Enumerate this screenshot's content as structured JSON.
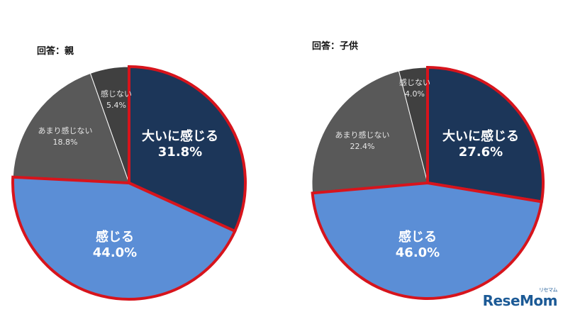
{
  "chart_data": [
    {
      "type": "pie",
      "title": "回答：親",
      "slices": [
        {
          "label": "大いに感じる",
          "value": 31.8,
          "value_text": "31.8%",
          "color": "#1c3659",
          "text_color": "#ffffff",
          "emphasis": true
        },
        {
          "label": "感じる",
          "value": 44.0,
          "value_text": "44.0%",
          "color": "#5b8ed6",
          "text_color": "#ffffff",
          "emphasis": true
        },
        {
          "label": "あまり感じない",
          "value": 18.8,
          "value_text": "18.8%",
          "color": "#595959",
          "text_color": "#e6e6e6",
          "emphasis": false
        },
        {
          "label": "感じない",
          "value": 5.4,
          "value_text": "5.4%",
          "color": "#404040",
          "text_color": "#e6e6e6",
          "emphasis": false
        }
      ],
      "highlight_border_color": "#d7141c"
    },
    {
      "type": "pie",
      "title": "回答：子供",
      "slices": [
        {
          "label": "大いに感じる",
          "value": 27.6,
          "value_text": "27.6%",
          "color": "#1c3659",
          "text_color": "#ffffff",
          "emphasis": true
        },
        {
          "label": "感じる",
          "value": 46.0,
          "value_text": "46.0%",
          "color": "#5b8ed6",
          "text_color": "#ffffff",
          "emphasis": true
        },
        {
          "label": "あまり感じない",
          "value": 22.4,
          "value_text": "22.4%",
          "color": "#595959",
          "text_color": "#e6e6e6",
          "emphasis": false
        },
        {
          "label": "感じない",
          "value": 4.0,
          "value_text": "4.0%",
          "color": "#404040",
          "text_color": "#e6e6e6",
          "emphasis": false
        }
      ],
      "highlight_border_color": "#d7141c"
    }
  ],
  "watermark": {
    "text": "ReseMom",
    "sub": "リセマム",
    "color": "#1c5a96"
  }
}
